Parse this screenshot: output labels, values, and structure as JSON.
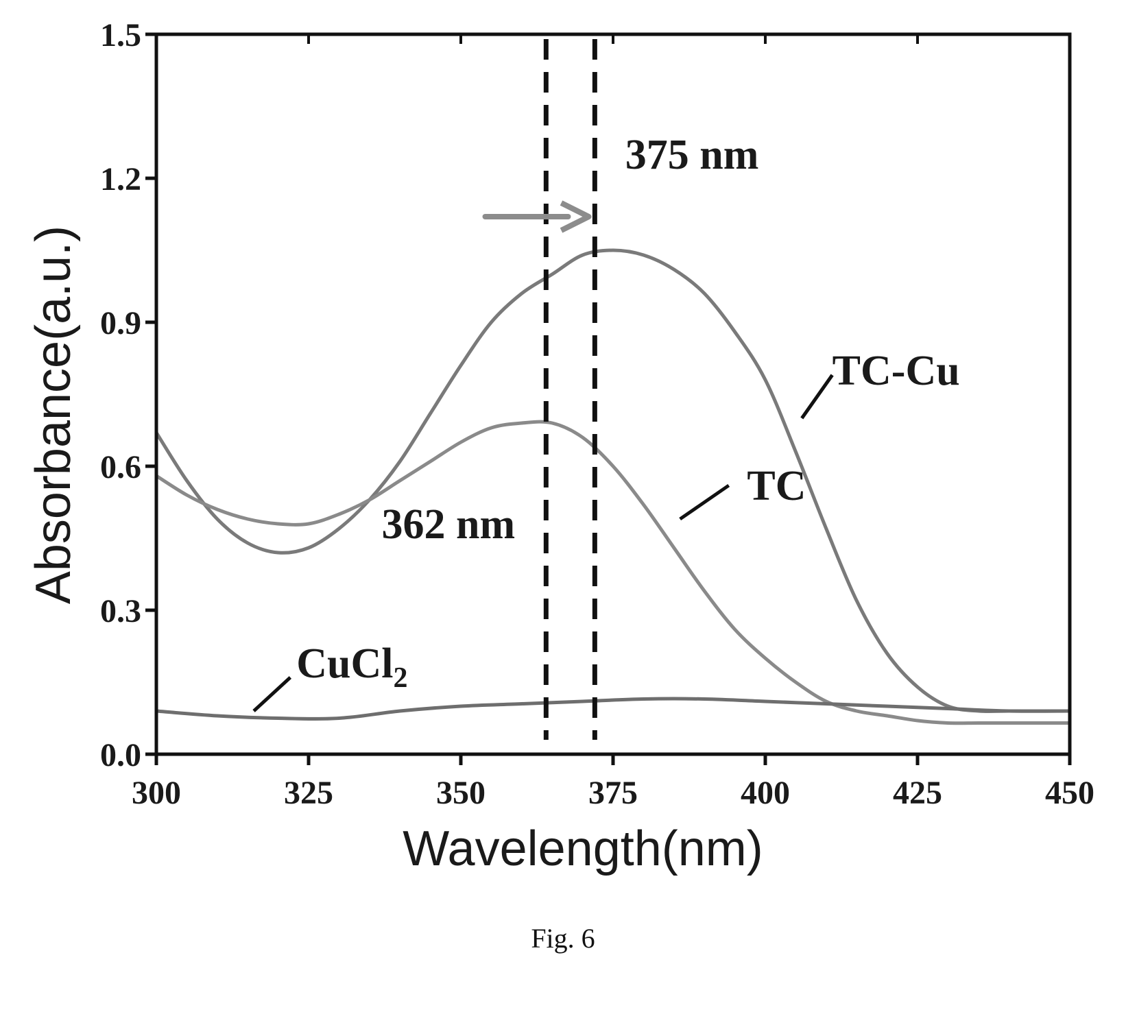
{
  "chart_data": {
    "type": "line",
    "xlabel": "Wavelength(nm)",
    "ylabel": "Absorbance(a.u.)",
    "xlim": [
      300,
      450
    ],
    "ylim": [
      0.0,
      1.5
    ],
    "x_ticks": [
      "300",
      "325",
      "350",
      "375",
      "400",
      "425",
      "450"
    ],
    "y_ticks": [
      "0.0",
      "0.3",
      "0.6",
      "0.9",
      "1.2",
      "1.5"
    ],
    "grid": false,
    "series": [
      {
        "name": "TC-Cu",
        "color": "#7a7a7a",
        "x": [
          300,
          305,
          310,
          315,
          320,
          325,
          330,
          335,
          340,
          345,
          350,
          355,
          360,
          365,
          370,
          375,
          380,
          385,
          390,
          395,
          400,
          405,
          410,
          415,
          420,
          425,
          430,
          435,
          440,
          445,
          450
        ],
        "y": [
          0.67,
          0.57,
          0.49,
          0.44,
          0.42,
          0.43,
          0.47,
          0.53,
          0.61,
          0.71,
          0.81,
          0.9,
          0.96,
          1.0,
          1.04,
          1.05,
          1.04,
          1.01,
          0.96,
          0.88,
          0.78,
          0.63,
          0.47,
          0.32,
          0.21,
          0.14,
          0.1,
          0.09,
          0.09,
          0.09,
          0.09
        ]
      },
      {
        "name": "TC",
        "color": "#8a8a8a",
        "x": [
          300,
          305,
          310,
          315,
          320,
          325,
          330,
          335,
          340,
          345,
          350,
          355,
          360,
          365,
          370,
          375,
          380,
          385,
          390,
          395,
          400,
          405,
          410,
          415,
          420,
          425,
          430,
          435,
          440,
          445,
          450
        ],
        "y": [
          0.58,
          0.54,
          0.51,
          0.49,
          0.48,
          0.48,
          0.5,
          0.53,
          0.57,
          0.61,
          0.65,
          0.68,
          0.69,
          0.69,
          0.66,
          0.6,
          0.52,
          0.43,
          0.34,
          0.26,
          0.2,
          0.15,
          0.11,
          0.09,
          0.08,
          0.07,
          0.065,
          0.065,
          0.065,
          0.065,
          0.065
        ]
      },
      {
        "name": "CuCl2",
        "color": "#6e6e6e",
        "x": [
          300,
          310,
          320,
          330,
          340,
          350,
          360,
          370,
          380,
          390,
          400,
          410,
          420,
          430,
          440,
          450
        ],
        "y": [
          0.09,
          0.08,
          0.075,
          0.075,
          0.09,
          0.1,
          0.105,
          0.11,
          0.115,
          0.115,
          0.11,
          0.105,
          0.1,
          0.095,
          0.09,
          0.09
        ]
      }
    ],
    "reference_lines": [
      {
        "axis": "x",
        "value": 364,
        "style": "dashed"
      },
      {
        "axis": "x",
        "value": 372,
        "style": "dashed"
      }
    ],
    "annotations": [
      {
        "text": "375 nm",
        "x": 377,
        "y": 1.22
      },
      {
        "text": "362 nm",
        "x": 337,
        "y": 0.45
      },
      {
        "text": "TC-Cu",
        "x": 411,
        "y": 0.77
      },
      {
        "text": "TC",
        "x": 397,
        "y": 0.53
      },
      {
        "text": "CuCl",
        "sub": "2",
        "x": 323,
        "y": 0.16
      }
    ],
    "pointer_lines": [
      {
        "label": "TC-Cu",
        "from": [
          406,
          0.7
        ],
        "to": [
          411,
          0.79
        ]
      },
      {
        "label": "TC",
        "from": [
          386,
          0.49
        ],
        "to": [
          394,
          0.56
        ]
      },
      {
        "label": "CuCl2",
        "from": [
          316,
          0.09
        ],
        "to": [
          322,
          0.16
        ]
      }
    ],
    "arrow": {
      "from": [
        354,
        1.12
      ],
      "to": [
        371,
        1.12
      ],
      "color": "#8c8c8c"
    }
  },
  "figure": {
    "caption": "Fig. 6"
  }
}
